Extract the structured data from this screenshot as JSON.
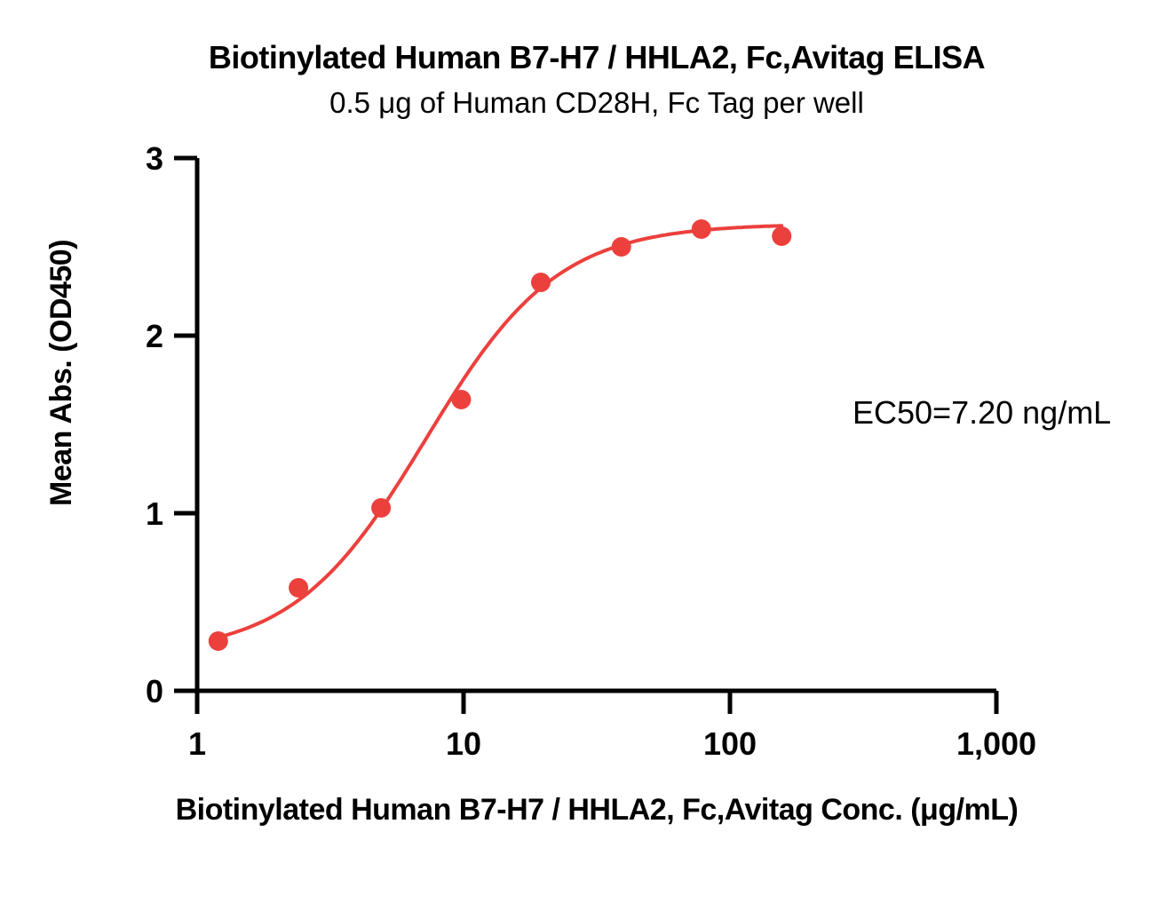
{
  "header": {
    "title": "Biotinylated Human B7-H7 / HHLA2, Fc,Avitag ELISA",
    "subtitle": "0.5 μg of Human CD28H, Fc Tag per well"
  },
  "annotation": {
    "ec50": "EC50=7.20 ng/mL"
  },
  "chart_data": {
    "type": "scatter",
    "title": "Biotinylated Human B7-H7 / HHLA2, Fc,Avitag ELISA",
    "subtitle": "0.5 μg of Human CD28H, Fc Tag per well",
    "xlabel": "Biotinylated Human B7-H7 / HHLA2, Fc,Avitag Conc. (μg/mL)",
    "ylabel": "Mean Abs. (OD450)",
    "x_scale": "log",
    "xlim": [
      1,
      1000
    ],
    "ylim": [
      0,
      3
    ],
    "grid": false,
    "legend": "none",
    "x": [
      1.2,
      2.4,
      4.9,
      9.8,
      19.5,
      39.1,
      78.1,
      156.3
    ],
    "y": [
      0.28,
      0.58,
      1.03,
      1.64,
      2.3,
      2.5,
      2.6,
      2.56
    ],
    "x_ticks": [
      1,
      10,
      100,
      1000
    ],
    "x_tick_labels": [
      "1",
      "10",
      "100",
      "1,000"
    ],
    "y_ticks": [
      0,
      1,
      2,
      3
    ],
    "y_tick_labels": [
      "0",
      "1",
      "2",
      "3"
    ],
    "curve_fit": {
      "model": "4PL",
      "bottom": 0.2,
      "top": 2.63,
      "ec50": 7.2,
      "hill": 1.75,
      "x_range": [
        1.2,
        156.3
      ]
    },
    "ec50_label": "EC50=7.20 ng/mL",
    "colors": {
      "curve": "#EC403D",
      "marker": "#EC403D",
      "axis": "#000000",
      "text": "#000000",
      "background": "#FFFFFF"
    }
  }
}
